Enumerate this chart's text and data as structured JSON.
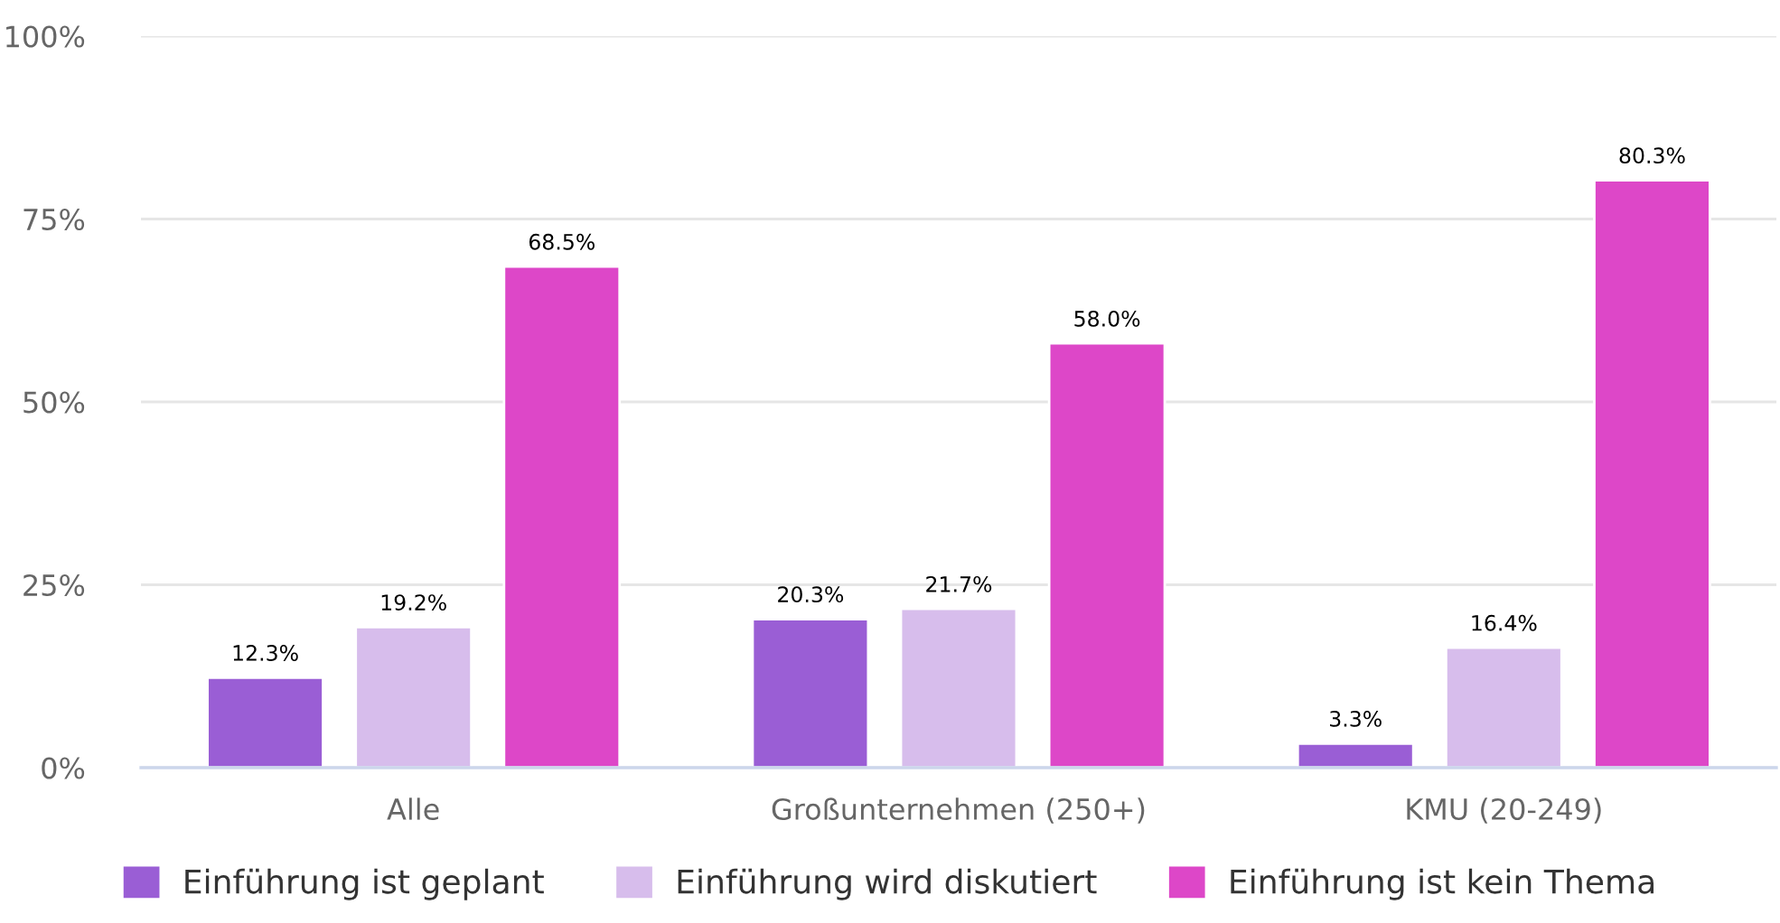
{
  "chart_data": {
    "type": "bar",
    "categories": [
      "Alle",
      "Großunternehmen (250+)",
      "KMU (20-249)"
    ],
    "series": [
      {
        "name": "Einführung ist geplant",
        "color": "#9a5ed5",
        "values": [
          12.3,
          20.3,
          3.3
        ],
        "value_labels": [
          "12.3%",
          "20.3%",
          "3.3%"
        ]
      },
      {
        "name": "Einführung wird diskutiert",
        "color": "#d7bdec",
        "values": [
          19.2,
          21.7,
          16.4
        ],
        "value_labels": [
          "19.2%",
          "21.7%",
          "16.4%"
        ]
      },
      {
        "name": "Einführung ist kein Thema",
        "color": "#dd47c8",
        "values": [
          68.5,
          58.0,
          80.3
        ],
        "value_labels": [
          "68.5%",
          "58.0%",
          "80.3%"
        ]
      }
    ],
    "ylim": [
      0,
      100
    ],
    "yticks": [
      {
        "value": 0,
        "label": "0%"
      },
      {
        "value": 25,
        "label": "25%"
      },
      {
        "value": 50,
        "label": "50%"
      },
      {
        "value": 75,
        "label": "75%"
      },
      {
        "value": 100,
        "label": "100%"
      }
    ],
    "grid": "y",
    "legend": "bottom"
  }
}
